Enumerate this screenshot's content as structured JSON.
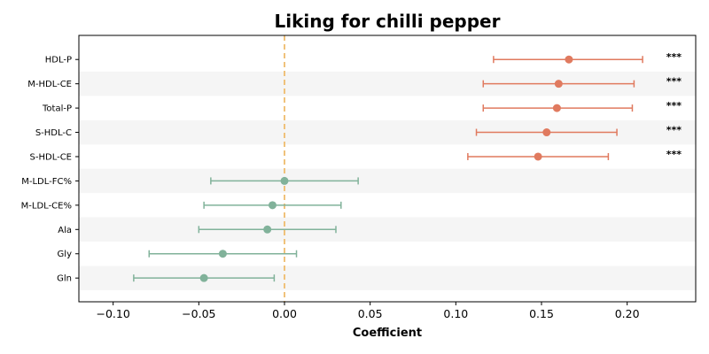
{
  "chart_data": {
    "type": "errorbar",
    "title": "Liking for chilli pepper",
    "xlabel": "Coefficient",
    "ylabel": "",
    "xlim": [
      -0.12,
      0.24
    ],
    "xticks": [
      -0.1,
      -0.05,
      0.0,
      0.05,
      0.1,
      0.15,
      0.2
    ],
    "xtick_labels": [
      "−0.10",
      "−0.05",
      "0.00",
      "0.05",
      "0.10",
      "0.15",
      "0.20"
    ],
    "reference_line": {
      "x": 0.0,
      "color": "#f0c27b",
      "style": "dashed"
    },
    "alternating_row_shading": true,
    "colors": {
      "significant": "#e07a5f",
      "non_significant": "#81b29a",
      "band": "#f5f5f5"
    },
    "points": [
      {
        "label": "HDL-P",
        "estimate": 0.166,
        "lower": 0.122,
        "upper": 0.209,
        "sig": "***"
      },
      {
        "label": "M-HDL-CE",
        "estimate": 0.16,
        "lower": 0.116,
        "upper": 0.204,
        "sig": "***"
      },
      {
        "label": "Total-P",
        "estimate": 0.159,
        "lower": 0.116,
        "upper": 0.203,
        "sig": "***"
      },
      {
        "label": "S-HDL-C",
        "estimate": 0.153,
        "lower": 0.112,
        "upper": 0.194,
        "sig": "***"
      },
      {
        "label": "S-HDL-CE",
        "estimate": 0.148,
        "lower": 0.107,
        "upper": 0.189,
        "sig": "***"
      },
      {
        "label": "M-LDL-FC%",
        "estimate": 0.0,
        "lower": -0.043,
        "upper": 0.043,
        "sig": ""
      },
      {
        "label": "M-LDL-CE%",
        "estimate": -0.007,
        "lower": -0.047,
        "upper": 0.033,
        "sig": ""
      },
      {
        "label": "Ala",
        "estimate": -0.01,
        "lower": -0.05,
        "upper": 0.03,
        "sig": ""
      },
      {
        "label": "Gly",
        "estimate": -0.036,
        "lower": -0.079,
        "upper": 0.007,
        "sig": ""
      },
      {
        "label": "Gln",
        "estimate": -0.047,
        "lower": -0.088,
        "upper": -0.006,
        "sig": ""
      }
    ]
  }
}
